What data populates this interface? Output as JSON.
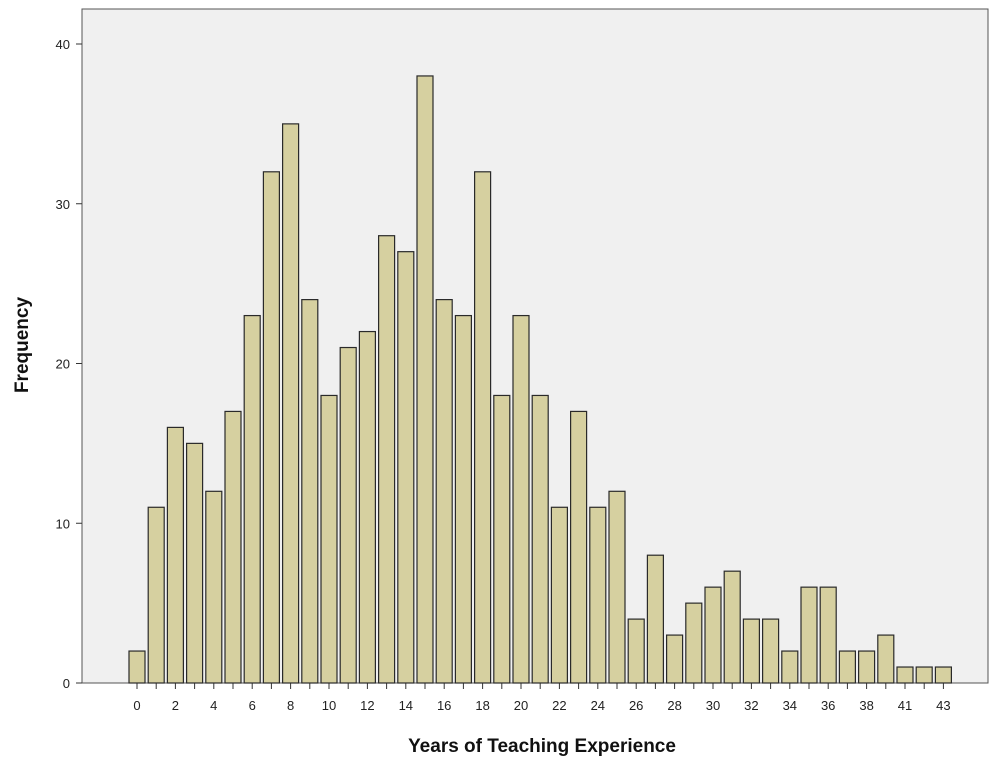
{
  "chart_data": {
    "type": "bar",
    "xlabel": "Years of Teaching Experience",
    "ylabel": "Frequency",
    "ylim": [
      0,
      40
    ],
    "yticks": [
      0,
      10,
      20,
      30,
      40
    ],
    "grid": false,
    "colors": {
      "bar_fill": "#d6d0a0",
      "bar_stroke": "#2a2a2a",
      "plot_bg": "#f0f0f0"
    },
    "categories": [
      "0",
      "1",
      "2",
      "3",
      "4",
      "5",
      "6",
      "7",
      "8",
      "9",
      "10",
      "11",
      "12",
      "13",
      "14",
      "15",
      "16",
      "17",
      "18",
      "19",
      "20",
      "21",
      "22",
      "23",
      "24",
      "25",
      "26",
      "27",
      "28",
      "29",
      "30",
      "31",
      "32",
      "33",
      "34",
      "35",
      "36",
      "37",
      "38",
      "39",
      "41",
      "42",
      "43"
    ],
    "tick_labels": {
      "0": "0",
      "2": "2",
      "4": "4",
      "6": "6",
      "8": "8",
      "10": "10",
      "12": "12",
      "14": "14",
      "16": "16",
      "18": "18",
      "20": "20",
      "22": "22",
      "24": "24",
      "26": "26",
      "28": "28",
      "30": "30",
      "32": "32",
      "34": "34",
      "36": "36",
      "38": "38",
      "41": "41",
      "43": "43"
    },
    "values": [
      2,
      11,
      16,
      15,
      12,
      17,
      23,
      32,
      35,
      24,
      18,
      21,
      22,
      28,
      27,
      38,
      24,
      23,
      32,
      18,
      23,
      18,
      11,
      17,
      11,
      12,
      4,
      8,
      3,
      5,
      6,
      7,
      4,
      4,
      2,
      6,
      6,
      2,
      2,
      3,
      1,
      1,
      1
    ]
  }
}
